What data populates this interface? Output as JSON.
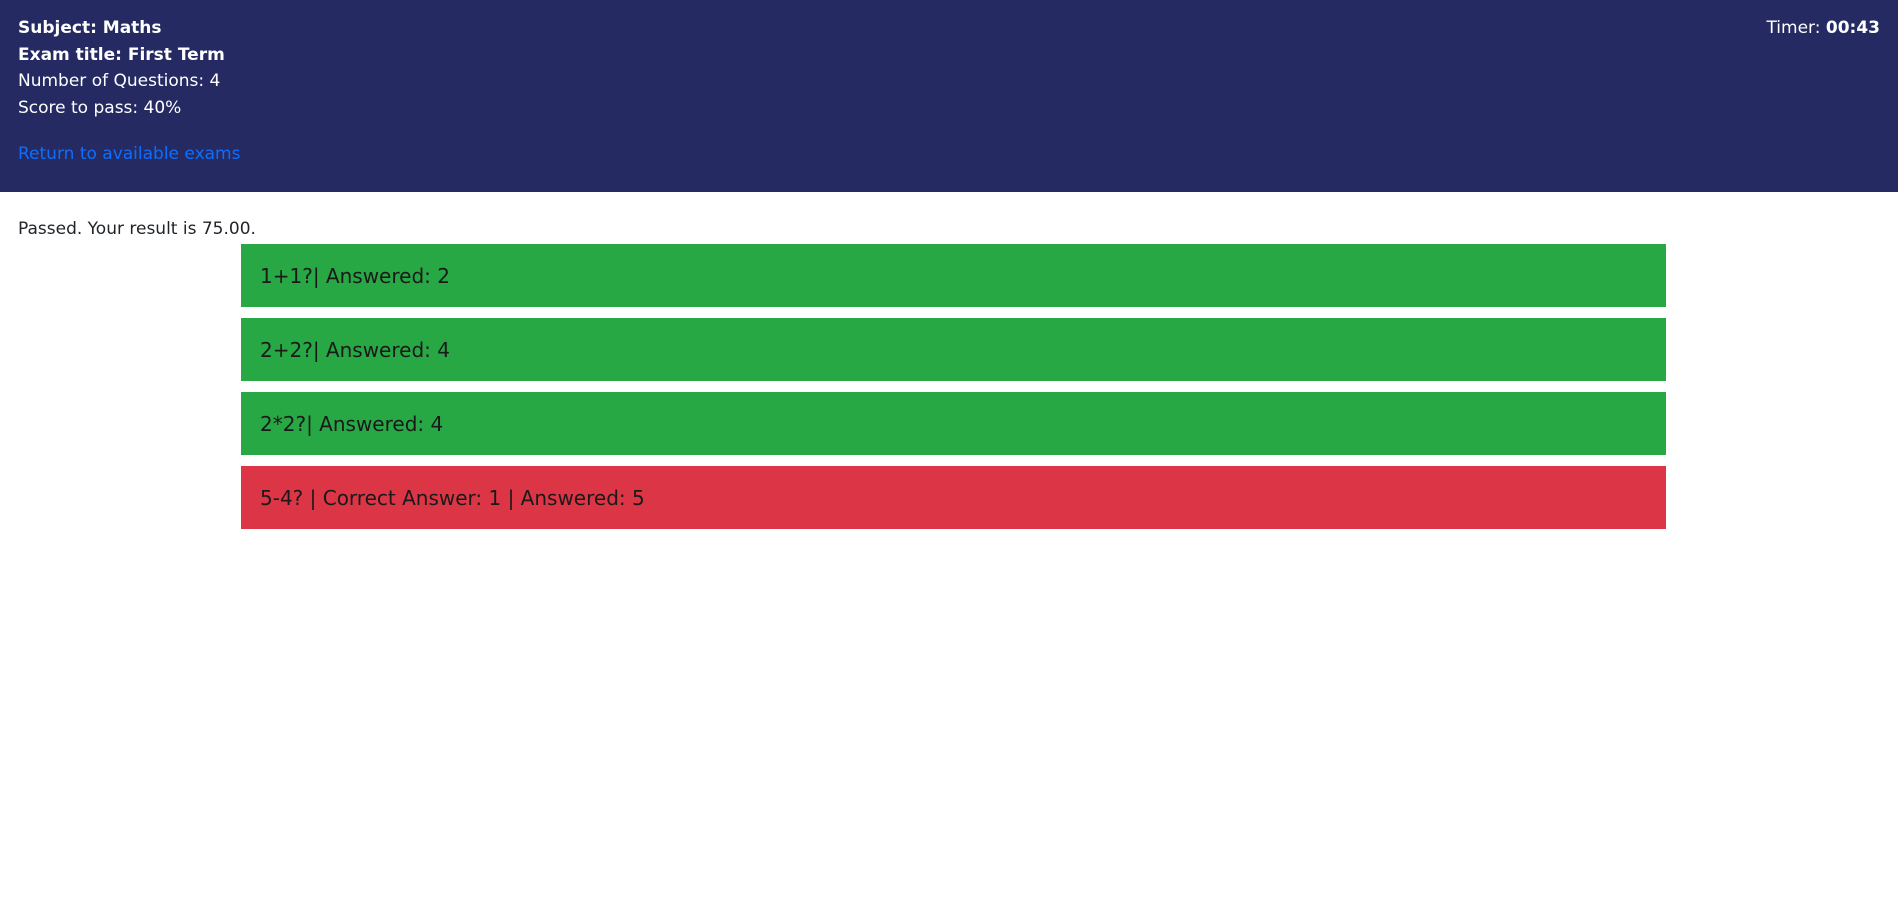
{
  "header": {
    "subject_label": "Subject: Maths",
    "exam_title_label": "Exam title: First Term",
    "num_questions_label": "Number of Questions: 4",
    "score_to_pass_label": "Score to pass: 40%",
    "return_link": "Return to available exams",
    "timer_label": "Timer: ",
    "timer_value": "00:43"
  },
  "result": {
    "text": "Passed. Your result is 75.00."
  },
  "answers": [
    {
      "text": "1+1?| Answered: 2",
      "status": "correct"
    },
    {
      "text": "2+2?| Answered: 4",
      "status": "correct"
    },
    {
      "text": "2*2?| Answered: 4",
      "status": "correct"
    },
    {
      "text": "5-4? | Correct Answer: 1 | Answered: 5",
      "status": "wrong"
    }
  ],
  "colors": {
    "header_bg": "#252b62",
    "link": "#0d6efd",
    "correct": "#28a745",
    "wrong": "#dc3545"
  }
}
